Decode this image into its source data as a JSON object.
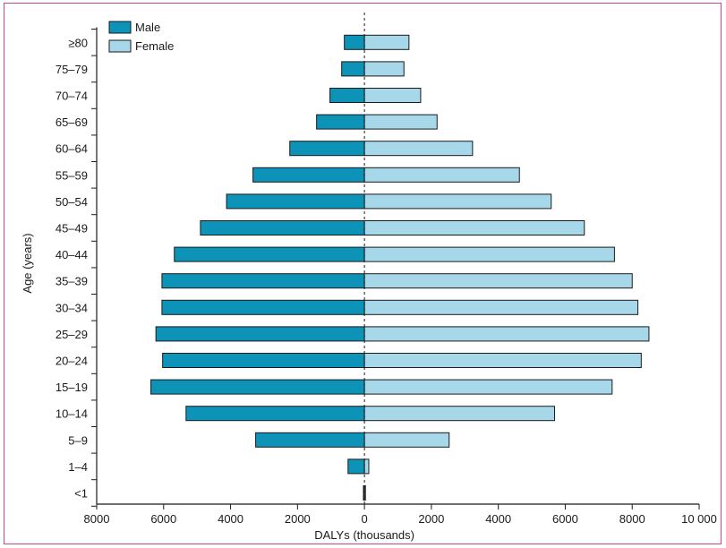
{
  "chart_data": {
    "type": "bar",
    "orientation": "horizontal-population-pyramid",
    "xlabel": "DALYs (thousands)",
    "ylabel": "Age (years)",
    "xlim": [
      -8000,
      10000
    ],
    "x_ticks": [
      {
        "value": -8000,
        "label": "8000"
      },
      {
        "value": -6000,
        "label": "6000"
      },
      {
        "value": -4000,
        "label": "4000"
      },
      {
        "value": -2000,
        "label": "2000"
      },
      {
        "value": 0,
        "label": "0"
      },
      {
        "value": 2000,
        "label": "2000"
      },
      {
        "value": 4000,
        "label": "4000"
      },
      {
        "value": 6000,
        "label": "6000"
      },
      {
        "value": 8000,
        "label": "8000"
      },
      {
        "value": 10000,
        "label": "10 000"
      }
    ],
    "categories": [
      "≥80",
      "75–79",
      "70–74",
      "65–69",
      "60–64",
      "55–59",
      "50–54",
      "45–49",
      "40–44",
      "35–39",
      "30–34",
      "25–29",
      "20–24",
      "15–19",
      "10–14",
      "5–9",
      "1–4",
      "<1"
    ],
    "series": [
      {
        "name": "Male",
        "color": "#0d93b8",
        "values": [
          600,
          680,
          1030,
          1430,
          2230,
          3330,
          4120,
          4900,
          5680,
          6050,
          6050,
          6230,
          6030,
          6380,
          5330,
          3250,
          490,
          30
        ]
      },
      {
        "name": "Female",
        "color": "#a7d8ea",
        "values": [
          1330,
          1180,
          1680,
          2170,
          3230,
          4630,
          5580,
          6570,
          7470,
          8000,
          8170,
          8500,
          8270,
          7400,
          5680,
          2530,
          130,
          30
        ]
      }
    ],
    "legend_position": "top-left",
    "grid": false
  }
}
